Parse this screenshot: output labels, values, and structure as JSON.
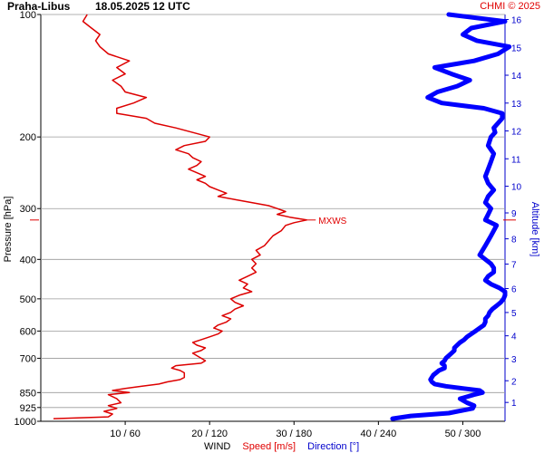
{
  "chart_data": {
    "type": "line",
    "title": "Praha-Libus",
    "subtitle": "18.05.2025 12 UTC",
    "credit": "CHMI © 2025",
    "ylabel_left": "Pressure [hPa]",
    "ylabel_right": "Altitude [km]",
    "xlabel": {
      "prefix": "WIND",
      "speed": "Speed [m/s]",
      "direction": "Direction [°]"
    },
    "pressure_ticks": [
      "100",
      "200",
      "300",
      "400",
      "500",
      "600",
      "700",
      "850",
      "925",
      "1000"
    ],
    "pressure_values": [
      100,
      200,
      300,
      400,
      500,
      600,
      700,
      850,
      925,
      1000
    ],
    "altitude_ticks": [
      "1",
      "2",
      "3",
      "4",
      "5",
      "6",
      "7",
      "8",
      "9",
      "10",
      "11",
      "12",
      "13",
      "14",
      "15",
      "16"
    ],
    "x_ticks": [
      "10 / 60",
      "20 / 120",
      "30 / 180",
      "40 / 240",
      "50 / 300"
    ],
    "speed_range": [
      0,
      55
    ],
    "direction_range": [
      0,
      330
    ],
    "pressure_range": [
      100,
      1000
    ],
    "pressure_scale": "log",
    "grid": "horizontal",
    "max_wind": {
      "label": "MXWS",
      "pressure": 320,
      "speed": 31.5
    },
    "colors": {
      "speed": "#dd0000",
      "direction": "#0000ff",
      "grid": "#999999",
      "credit": "#e00000"
    },
    "series": [
      {
        "name": "Speed [m/s]",
        "pressure": [
          985,
          975,
          960,
          945,
          930,
          915,
          900,
          880,
          860,
          850,
          840,
          830,
          820,
          810,
          800,
          790,
          780,
          770,
          760,
          750,
          740,
          730,
          720,
          710,
          700,
          690,
          680,
          670,
          660,
          650,
          640,
          630,
          620,
          610,
          600,
          590,
          580,
          570,
          560,
          550,
          540,
          530,
          520,
          510,
          500,
          490,
          480,
          470,
          460,
          450,
          440,
          430,
          420,
          410,
          400,
          390,
          380,
          370,
          360,
          350,
          340,
          330,
          325,
          320,
          315,
          310,
          305,
          300,
          295,
          290,
          285,
          280,
          275,
          270,
          265,
          260,
          255,
          250,
          245,
          240,
          235,
          230,
          225,
          220,
          215,
          210,
          205,
          200,
          195,
          190,
          185,
          180,
          175,
          170,
          165,
          160,
          155,
          150,
          145,
          140,
          135,
          130,
          125,
          120,
          116,
          112,
          108,
          104,
          100
        ],
        "values": [
          1.5,
          8,
          8.5,
          7.5,
          9,
          8,
          9.5,
          9,
          8,
          10.5,
          8.5,
          10,
          12,
          14,
          15,
          16.5,
          17,
          17,
          17,
          16.5,
          15.5,
          16,
          19,
          19.5,
          19,
          18.5,
          18,
          19,
          19.5,
          18.5,
          18,
          19,
          20,
          21,
          21.5,
          20.5,
          21,
          22,
          22.5,
          21.5,
          22.5,
          23,
          24,
          23,
          22.5,
          23.5,
          25,
          24,
          24.5,
          23.5,
          24.5,
          25.5,
          25,
          25.5,
          25,
          26,
          25.5,
          26.5,
          27,
          27.5,
          28.5,
          29,
          30,
          31.5,
          29.5,
          28,
          29,
          28,
          27,
          25,
          23,
          21,
          22,
          21,
          20,
          19.5,
          18.5,
          19.5,
          18.5,
          17.5,
          18.5,
          19,
          18,
          17.5,
          16,
          17,
          19.5,
          20,
          18,
          16,
          13.5,
          12.5,
          9,
          9,
          11,
          12.5,
          10,
          9.5,
          8.5,
          10,
          9,
          10.5,
          8,
          7,
          6.5,
          7,
          6,
          5,
          5.5
        ]
      },
      {
        "name": "Direction [°]",
        "pressure": [
          985,
          970,
          955,
          940,
          930,
          915,
          900,
          880,
          860,
          850,
          840,
          830,
          820,
          810,
          800,
          790,
          780,
          770,
          760,
          750,
          740,
          730,
          720,
          710,
          700,
          690,
          680,
          670,
          660,
          650,
          640,
          630,
          620,
          610,
          600,
          590,
          580,
          570,
          560,
          550,
          540,
          530,
          520,
          510,
          500,
          490,
          480,
          470,
          460,
          450,
          440,
          430,
          420,
          410,
          400,
          390,
          380,
          370,
          360,
          350,
          340,
          330,
          320,
          310,
          300,
          290,
          280,
          270,
          260,
          250,
          240,
          230,
          220,
          210,
          200,
          195,
          190,
          185,
          180,
          175,
          170,
          165,
          160,
          155,
          150,
          145,
          140,
          135,
          130,
          125,
          120,
          116,
          112,
          108,
          104,
          100
        ],
        "values": [
          250,
          263,
          290,
          300,
          307,
          308,
          303,
          298,
          308,
          314,
          312,
          300,
          288,
          280,
          278,
          277,
          278,
          279,
          281,
          283,
          287,
          287,
          285,
          287,
          288,
          290,
          292,
          294,
          294,
          296,
          298,
          301,
          303,
          306,
          309,
          312,
          315,
          316,
          316,
          318,
          319,
          321,
          324,
          327,
          329,
          330,
          330,
          326,
          320,
          316,
          318,
          322,
          322,
          320,
          316,
          312,
          314,
          316,
          318,
          320,
          322,
          324,
          316,
          318,
          320,
          316,
          318,
          322,
          318,
          316,
          318,
          320,
          322,
          318,
          320,
          323,
          322,
          325,
          328,
          328,
          315,
          285,
          275,
          282,
          296,
          305,
          292,
          280,
          308,
          325,
          333,
          310,
          300,
          306,
          330,
          290
        ]
      }
    ]
  }
}
